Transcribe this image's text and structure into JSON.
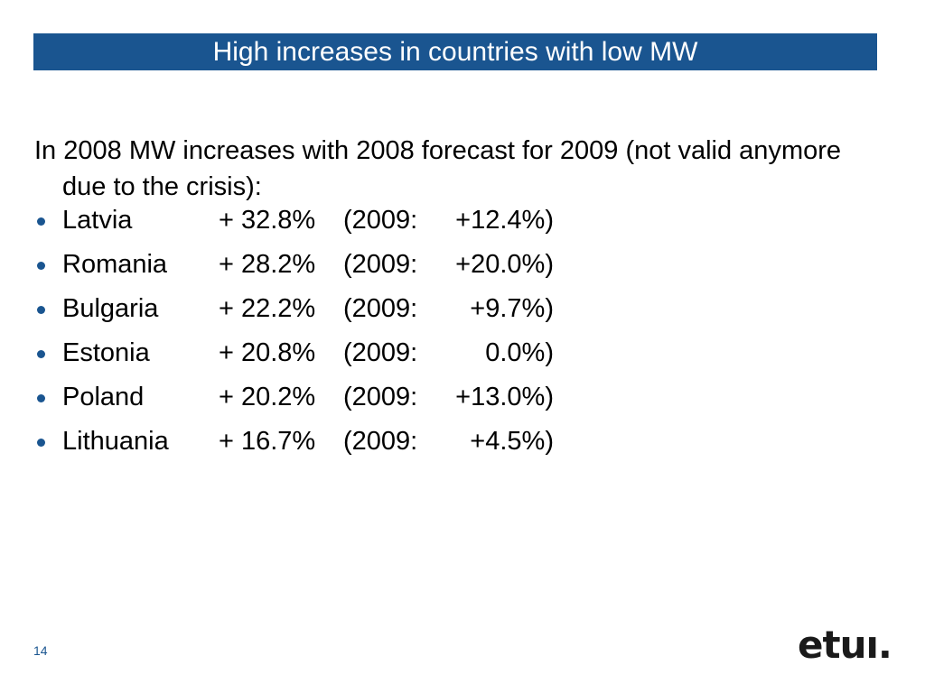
{
  "slide": {
    "title": "High increases in countries with low MW",
    "intro": "In 2008 MW increases with 2008 forecast for 2009 (not valid anymore due to the crisis):",
    "items": [
      {
        "country": "Latvia",
        "increase": "+ 32.8%",
        "year_label": "(2009:",
        "forecast": "+12.4%)"
      },
      {
        "country": "Romania",
        "increase": "+ 28.2%",
        "year_label": "(2009:",
        "forecast": "+20.0%)"
      },
      {
        "country": "Bulgaria",
        "increase": "+ 22.2%",
        "year_label": "(2009:",
        "forecast": "+9.7%)"
      },
      {
        "country": "Estonia",
        "increase": "+ 20.8%",
        "year_label": "(2009:",
        "forecast": "0.0%)"
      },
      {
        "country": "Poland",
        "increase": "+ 20.2%",
        "year_label": "(2009:",
        "forecast": "+13.0%)"
      },
      {
        "country": "Lithuania",
        "increase": "+ 16.7%",
        "year_label": "(2009:",
        "forecast": "+4.5%)"
      }
    ],
    "page_number": "14",
    "logo_text": "etuı."
  },
  "colors": {
    "title_bar": "#1a5590",
    "bullet": "#1a5590",
    "text": "#000000"
  }
}
